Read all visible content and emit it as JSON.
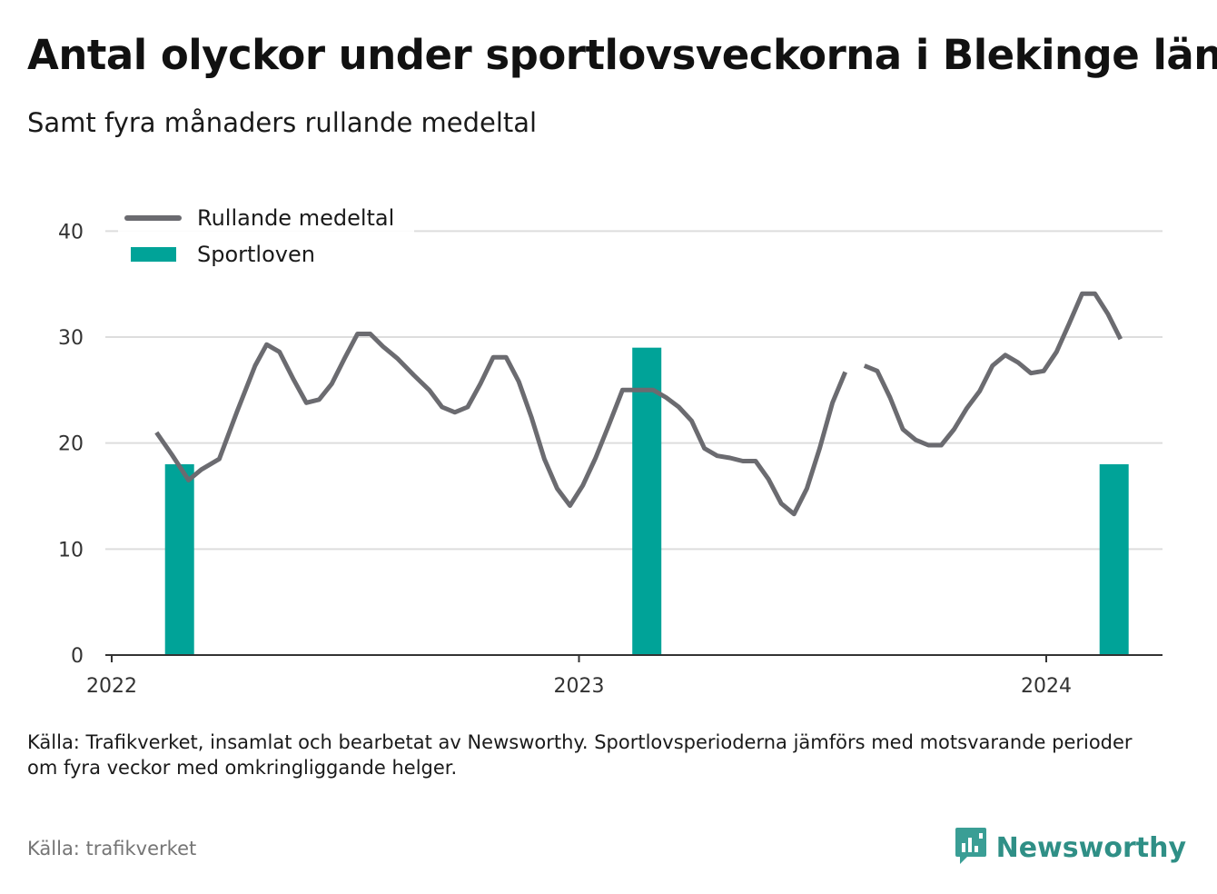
{
  "title": "Antal olyckor under sportlovsveckorna i Blekinge län",
  "subtitle": "Samt fyra månaders rullande medeltal",
  "note": "Källa: Trafikverket, insamlat och bearbetat av Newsworthy. Sportlovsperioderna jämförs med motsvarande perioder om fyra veckor med omkringliggande helger.",
  "source": "Källa: trafikverket",
  "brand": {
    "name": "Newsworthy",
    "icon": "newsworthy-logo-icon"
  },
  "colors": {
    "line": "#6b6b70",
    "bar": "#00a398",
    "grid": "#dddddd",
    "axis": "#333333",
    "brand": "#2f8f86"
  },
  "chart_data": {
    "type": "bar+line",
    "x_axis": {
      "type": "date",
      "ticks": [
        "2022",
        "2023",
        "2024"
      ],
      "range": [
        "2022-01-01",
        "2024-03-31"
      ]
    },
    "y_axis": {
      "range": [
        0,
        45
      ],
      "ticks": [
        0,
        10,
        20,
        30,
        40
      ],
      "grid": true
    },
    "legend": {
      "position": "top-left",
      "entries": [
        "Rullande medeltal",
        "Sportloven"
      ]
    },
    "series": [
      {
        "name": "Rullande medeltal",
        "type": "line",
        "segments": [
          [
            [
              "2022-02-05",
              21
            ],
            [
              "2022-02-17",
              18.9
            ],
            [
              "2022-03-02",
              16.5
            ],
            [
              "2022-03-12",
              17.5
            ],
            [
              "2022-03-26",
              18.5
            ],
            [
              "2022-04-09",
              23
            ],
            [
              "2022-04-23",
              27.3
            ],
            [
              "2022-05-02",
              29.3
            ],
            [
              "2022-05-12",
              28.6
            ],
            [
              "2022-05-23",
              26
            ],
            [
              "2022-06-02",
              23.8
            ],
            [
              "2022-06-12",
              24.1
            ],
            [
              "2022-06-22",
              25.6
            ],
            [
              "2022-07-02",
              28
            ],
            [
              "2022-07-12",
              30.3
            ],
            [
              "2022-07-22",
              30.3
            ],
            [
              "2022-08-01",
              29.1
            ],
            [
              "2022-08-12",
              28
            ],
            [
              "2022-08-25",
              26.4
            ],
            [
              "2022-09-06",
              25
            ],
            [
              "2022-09-16",
              23.4
            ],
            [
              "2022-09-26",
              22.9
            ],
            [
              "2022-10-06",
              23.4
            ],
            [
              "2022-10-16",
              25.6
            ],
            [
              "2022-10-26",
              28.1
            ],
            [
              "2022-11-05",
              28.1
            ],
            [
              "2022-11-15",
              25.8
            ],
            [
              "2022-11-25",
              22.4
            ],
            [
              "2022-12-05",
              18.5
            ],
            [
              "2022-12-15",
              15.7
            ],
            [
              "2022-12-25",
              14.1
            ],
            [
              "2023-01-04",
              16
            ],
            [
              "2023-01-14",
              18.6
            ],
            [
              "2023-01-24",
              21.6
            ],
            [
              "2023-02-04",
              25
            ],
            [
              "2023-02-16",
              25
            ],
            [
              "2023-02-28",
              25
            ],
            [
              "2023-03-10",
              24.3
            ],
            [
              "2023-03-20",
              23.4
            ],
            [
              "2023-03-30",
              22.1
            ],
            [
              "2023-04-09",
              19.5
            ],
            [
              "2023-04-19",
              18.8
            ],
            [
              "2023-04-29",
              18.6
            ],
            [
              "2023-05-09",
              18.3
            ],
            [
              "2023-05-19",
              18.3
            ],
            [
              "2023-05-29",
              16.6
            ],
            [
              "2023-06-08",
              14.3
            ],
            [
              "2023-06-18",
              13.3
            ],
            [
              "2023-06-28",
              15.7
            ],
            [
              "2023-07-08",
              19.5
            ],
            [
              "2023-07-18",
              23.8
            ],
            [
              "2023-07-28",
              26.7
            ]
          ],
          [
            [
              "2023-08-12",
              27.3
            ],
            [
              "2023-08-22",
              26.8
            ],
            [
              "2023-09-01",
              24.3
            ],
            [
              "2023-09-11",
              21.3
            ],
            [
              "2023-09-21",
              20.3
            ],
            [
              "2023-10-01",
              19.8
            ],
            [
              "2023-10-11",
              19.8
            ],
            [
              "2023-10-21",
              21.3
            ],
            [
              "2023-10-31",
              23.3
            ],
            [
              "2023-11-10",
              24.9
            ],
            [
              "2023-11-20",
              27.3
            ],
            [
              "2023-11-30",
              28.3
            ],
            [
              "2023-12-10",
              27.6
            ],
            [
              "2023-12-20",
              26.6
            ],
            [
              "2023-12-30",
              26.8
            ],
            [
              "2024-01-09",
              28.6
            ],
            [
              "2024-01-19",
              31.3
            ],
            [
              "2024-01-29",
              34.1
            ],
            [
              "2024-02-08",
              34.1
            ],
            [
              "2024-02-18",
              32.2
            ],
            [
              "2024-02-28",
              29.8
            ]
          ]
        ]
      },
      {
        "name": "Sportloven",
        "type": "bar",
        "points": [
          [
            "2022-02-23",
            18
          ],
          [
            "2023-02-23",
            29
          ],
          [
            "2024-02-23",
            18
          ]
        ]
      }
    ]
  }
}
